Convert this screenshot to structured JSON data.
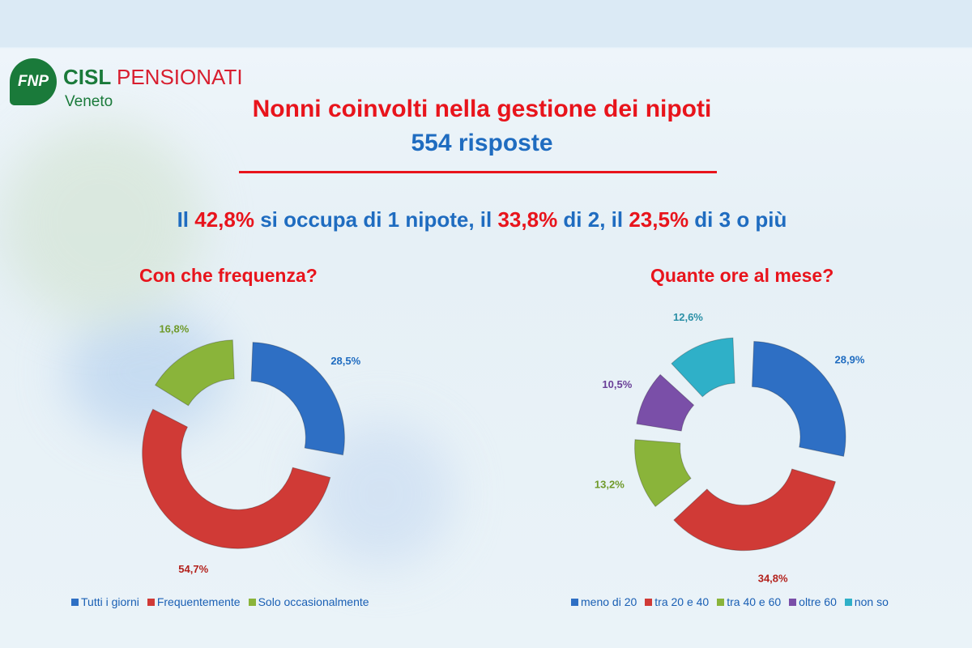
{
  "logo": {
    "mark": "FNP",
    "name1": "CISL",
    "name2": "PENSIONATI",
    "region": "Veneto"
  },
  "title": "Nonni coinvolti nella gestione dei nipoti",
  "subtitle": "554 risposte",
  "summary": {
    "p1": "Il ",
    "v1": "42,8%",
    "p2": " si occupa di 1 nipote, il ",
    "v2": "33,8%",
    "p3": " di 2, il ",
    "v3": "23,5%",
    "p4": " di 3 o più"
  },
  "chart_data": [
    {
      "type": "pie",
      "title": "Con che frequenza?",
      "categories": [
        "Tutti i giorni",
        "Frequentemente",
        "Solo occasionalmente"
      ],
      "values": [
        28.5,
        54.7,
        16.8
      ],
      "labels": [
        "28,5%",
        "54,7%",
        "16,8%"
      ],
      "colors": [
        "#2e6fc4",
        "#d03a36",
        "#8ab43a"
      ],
      "legend": "bottom"
    },
    {
      "type": "pie",
      "title": "Quante ore al mese?",
      "categories": [
        "meno di 20",
        "tra 20 e 40",
        "tra 40 e 60",
        "oltre 60",
        "non so"
      ],
      "values": [
        28.9,
        34.8,
        13.2,
        10.5,
        12.6
      ],
      "labels": [
        "28,9%",
        "34,8%",
        "13,2%",
        "10,5%",
        "12,6%"
      ],
      "colors": [
        "#2e6fc4",
        "#d03a36",
        "#8ab43a",
        "#7a4fa8",
        "#2fb0c8"
      ],
      "legend": "bottom"
    }
  ]
}
